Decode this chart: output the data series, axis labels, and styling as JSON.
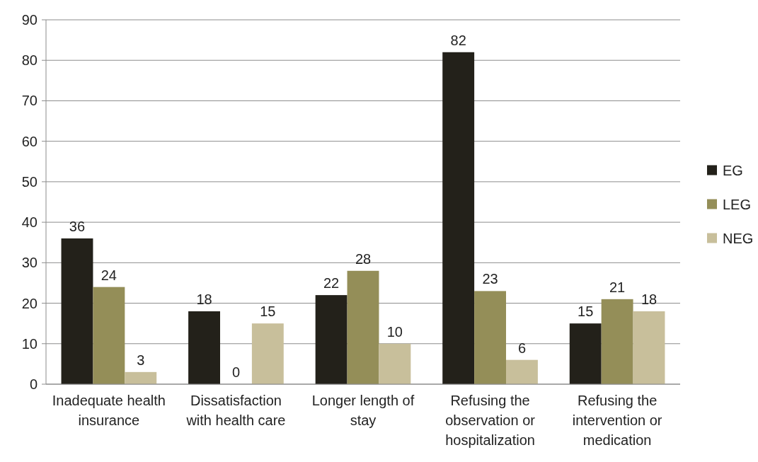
{
  "chart_data": {
    "type": "bar",
    "categories": [
      "Inadequate health insurance",
      "Dissatisfaction with health care",
      "Longer length of stay",
      "Refusing the observation or hospitalization",
      "Refusing the intervention or medication"
    ],
    "series": [
      {
        "name": "EG",
        "color": "#23211a",
        "values": [
          36,
          18,
          22,
          82,
          15
        ]
      },
      {
        "name": "LEG",
        "color": "#948e58",
        "values": [
          24,
          0,
          28,
          23,
          21
        ]
      },
      {
        "name": "NEG",
        "color": "#c8bf9b",
        "values": [
          3,
          15,
          10,
          6,
          18
        ]
      }
    ],
    "ylim": [
      0,
      90
    ],
    "yticks": [
      0,
      10,
      20,
      30,
      40,
      50,
      60,
      70,
      80,
      90
    ],
    "grid": "y",
    "legend": "right",
    "data_labels": true
  }
}
